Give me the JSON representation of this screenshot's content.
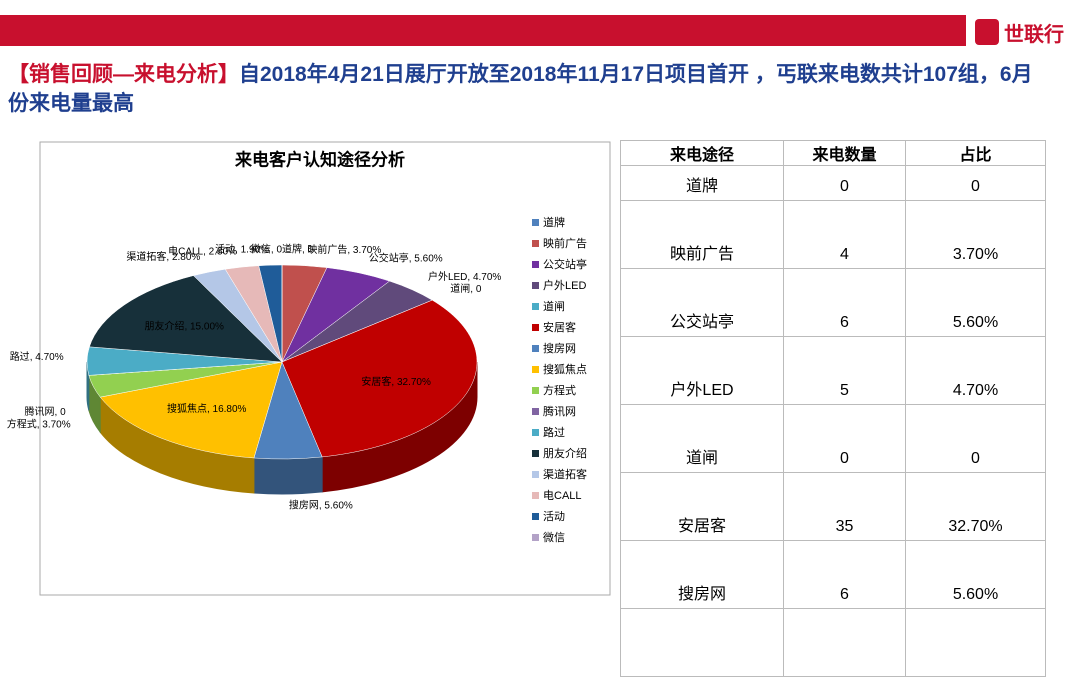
{
  "header": {
    "logo": "世联行",
    "title_tag": "【销售回顾—来电分析】",
    "title_text": "自2018年4月21日展厅开放至2018年11月17日项目首开 ，丐联来电数共计107组，6月份来电量最高"
  },
  "chart_data": {
    "type": "pie",
    "title": "来电客户认知途径分析",
    "categories": [
      "道牌",
      "映前广告",
      "公交站亭",
      "户外LED",
      "道闸",
      "安居客",
      "搜房网",
      "搜狐焦点",
      "方程式",
      "腾讯网",
      "路过",
      "朋友介绍",
      "渠道拓客",
      "电CALL",
      "活动",
      "微信"
    ],
    "values": [
      0,
      3.7,
      5.6,
      4.7,
      0,
      32.7,
      5.6,
      16.8,
      3.7,
      0,
      4.7,
      15.0,
      2.8,
      2.8,
      1.9,
      0
    ],
    "value_labels": [
      "0",
      "3.70%",
      "5.60%",
      "4.70%",
      "0",
      "32.70%",
      "5.60%",
      "16.80%",
      "3.70%",
      "0",
      "4.70%",
      "15.00%",
      "2.80%",
      "2.80%",
      "1.90%",
      "0"
    ],
    "label_separator": ", ",
    "colors": [
      "#4f81bd",
      "#c0504d",
      "#7030a0",
      "#604a7b",
      "#4bacc6",
      "#c00000",
      "#4f81bd",
      "#ffc000",
      "#92d050",
      "#8064a2",
      "#4bacc6",
      "#17303a",
      "#b4c7e7",
      "#e6b9b8",
      "#1f5c99",
      "#b3a2c7"
    ],
    "legend": "right"
  },
  "table": {
    "header": [
      "来电途径",
      "来电数量",
      "占比"
    ],
    "rows": [
      [
        "道牌",
        "0",
        "0"
      ],
      [
        "映前广告",
        "4",
        "3.70%"
      ],
      [
        "公交站亭",
        "6",
        "5.60%"
      ],
      [
        "户外LED",
        "5",
        "4.70%"
      ],
      [
        "道闸",
        "0",
        "0"
      ],
      [
        "安居客",
        "35",
        "32.70%"
      ],
      [
        "搜房网",
        "6",
        "5.60%"
      ]
    ]
  }
}
